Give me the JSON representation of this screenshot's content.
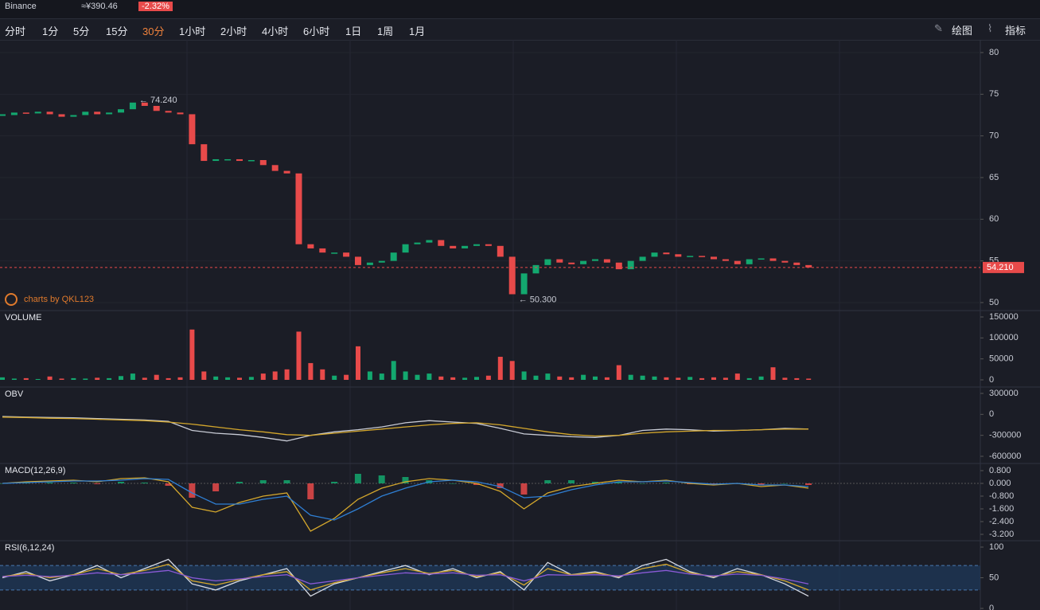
{
  "header": {
    "exchange": "Binance",
    "price": "≈¥390.46",
    "change": "-2.32%"
  },
  "toolbar": {
    "intervals": [
      "分时",
      "1分",
      "5分",
      "15分",
      "30分",
      "1小时",
      "2小时",
      "4小时",
      "6小时",
      "1日",
      "1周",
      "1月"
    ],
    "draw": "绘图",
    "indicators": "指标"
  },
  "chart_data": [
    {
      "type": "candlestick",
      "watermark": "charts by QKL123",
      "up_color": "#13a86f",
      "down_color": "#e84a4a",
      "values": [
        72.5,
        72.8,
        72.7,
        72.9,
        72.6,
        72.3,
        72.5,
        72.9,
        72.6,
        72.8,
        73.2,
        74.0,
        73.6,
        73.0,
        72.8,
        72.6,
        69.0,
        67.0,
        67.2,
        67.2,
        67.0,
        67.1,
        66.5,
        65.8,
        65.5,
        57.0,
        56.5,
        56.0,
        56.0,
        55.5,
        54.5,
        54.8,
        55.0,
        56.0,
        57.0,
        57.2,
        57.5,
        56.8,
        56.5,
        56.8,
        57.0,
        56.8,
        55.5,
        51.0,
        53.5,
        54.5,
        55.2,
        54.8,
        54.6,
        55.0,
        55.2,
        54.8,
        54.0,
        55.0,
        55.5,
        56.0,
        55.8,
        55.5,
        55.6,
        55.5,
        55.2,
        55.0,
        54.6,
        55.2,
        55.3,
        55.0,
        54.8,
        54.5,
        54.21
      ],
      "high": {
        "value": 74.24,
        "label": "← 74.240"
      },
      "low": {
        "value": 50.3,
        "label": "← 50.300"
      },
      "last_price": {
        "value": 54.21,
        "label": "54.210"
      },
      "ylim": [
        49.04,
        81.53
      ],
      "yticks": [
        50,
        55,
        60,
        65,
        70,
        75,
        80
      ]
    },
    {
      "type": "bar",
      "title": "VOLUME",
      "up_color": "#13a86f",
      "down_color": "#e84a4a",
      "values": [
        6000,
        3000,
        4000,
        2000,
        8000,
        3000,
        4000,
        3000,
        5000,
        4000,
        9000,
        15000,
        5000,
        12000,
        4000,
        6000,
        120000,
        20000,
        8000,
        6000,
        5000,
        7000,
        15000,
        20000,
        25000,
        115000,
        40000,
        25000,
        10000,
        12000,
        80000,
        20000,
        15000,
        45000,
        20000,
        12000,
        15000,
        8000,
        6000,
        5000,
        7000,
        10000,
        55000,
        45000,
        20000,
        10000,
        15000,
        8000,
        6000,
        12000,
        8000,
        6000,
        35000,
        12000,
        10000,
        8000,
        6000,
        5000,
        7000,
        4000,
        6000,
        5000,
        15000,
        4000,
        8000,
        30000,
        5000,
        4000,
        3000
      ],
      "ylim": [
        -17090,
        165190
      ],
      "yticks": [
        0,
        50000,
        100000,
        150000
      ]
    },
    {
      "type": "line",
      "title": "OBV",
      "series": [
        {
          "color": "#c9ccd6",
          "values": [
            -30000,
            -40000,
            -45000,
            -50000,
            -60000,
            -70000,
            -80000,
            -100000,
            -230000,
            -270000,
            -290000,
            -330000,
            -380000,
            -300000,
            -250000,
            -220000,
            -180000,
            -120000,
            -90000,
            -110000,
            -130000,
            -200000,
            -280000,
            -300000,
            -320000,
            -330000,
            -300000,
            -230000,
            -210000,
            -220000,
            -240000,
            -230000,
            -220000,
            -200000,
            -210000
          ]
        },
        {
          "color": "#d4a72c",
          "values": [
            -40000,
            -45000,
            -55000,
            -60000,
            -70000,
            -80000,
            -90000,
            -110000,
            -140000,
            -180000,
            -220000,
            -250000,
            -290000,
            -300000,
            -270000,
            -240000,
            -210000,
            -180000,
            -150000,
            -130000,
            -120000,
            -150000,
            -200000,
            -250000,
            -290000,
            -310000,
            -300000,
            -270000,
            -250000,
            -240000,
            -230000,
            -230000,
            -220000,
            -210000,
            -210000
          ]
        }
      ],
      "ylim": [
        -702500,
        391100
      ],
      "yticks": [
        -600000,
        -300000,
        0,
        300000
      ]
    },
    {
      "type": "line",
      "title": "MACD(12,26,9)",
      "histogram": {
        "up_color": "#13a86f",
        "down_color": "#e84a4a",
        "values": [
          0,
          0.05,
          0.05,
          0.05,
          -0.05,
          0.1,
          0.05,
          -0.15,
          -0.9,
          -0.5,
          0.1,
          0.2,
          0.2,
          -1.0,
          0.1,
          0.6,
          0.5,
          0.4,
          0.2,
          0,
          -0.1,
          -0.3,
          -0.7,
          0.2,
          0.2,
          0.1,
          0.1,
          0,
          0.05,
          -0.05,
          -0.05,
          0,
          -0.1,
          0,
          -0.1
        ]
      },
      "series": [
        {
          "color": "#d4a72c",
          "values": [
            0,
            0.1,
            0.15,
            0.2,
            0.1,
            0.3,
            0.35,
            0.1,
            -1.5,
            -1.8,
            -1.2,
            -0.8,
            -0.6,
            -3.0,
            -2.2,
            -1.0,
            -0.3,
            0.1,
            0.3,
            0.2,
            0.0,
            -0.5,
            -1.6,
            -0.6,
            -0.2,
            0.0,
            0.2,
            0.1,
            0.2,
            0.0,
            -0.1,
            0.0,
            -0.2,
            -0.1,
            -0.3
          ]
        },
        {
          "color": "#2f7fd4",
          "values": [
            0,
            0.05,
            0.1,
            0.15,
            0.15,
            0.2,
            0.3,
            0.25,
            -0.6,
            -1.3,
            -1.3,
            -1.0,
            -0.8,
            -2.0,
            -2.3,
            -1.6,
            -0.8,
            -0.3,
            0.1,
            0.2,
            0.1,
            -0.2,
            -0.9,
            -0.8,
            -0.4,
            -0.1,
            0.1,
            0.1,
            0.15,
            0.05,
            -0.05,
            0.0,
            -0.1,
            -0.1,
            -0.2
          ]
        }
      ],
      "ylim": [
        -3.6,
        1.25
      ],
      "yticks": [
        {
          "value": -3.2,
          "label": "-3.200"
        },
        {
          "value": -2.4,
          "label": "-2.400"
        },
        {
          "value": -1.6,
          "label": "-1.600"
        },
        {
          "value": -0.8,
          "label": "-0.800"
        },
        {
          "value": 0,
          "label": "0.000"
        },
        {
          "value": 0.8,
          "label": "0.800"
        }
      ]
    },
    {
      "type": "line",
      "title": "RSI(6,12,24)",
      "band": [
        30,
        70
      ],
      "band_color": "#1e3a5c",
      "series": [
        {
          "color": "#d8dbe3",
          "values": [
            50,
            60,
            45,
            55,
            70,
            50,
            65,
            80,
            40,
            30,
            45,
            55,
            65,
            20,
            40,
            50,
            60,
            70,
            55,
            65,
            50,
            60,
            30,
            75,
            55,
            60,
            50,
            70,
            80,
            60,
            50,
            65,
            55,
            40,
            20
          ]
        },
        {
          "color": "#d4a72c",
          "values": [
            52,
            57,
            50,
            55,
            65,
            55,
            62,
            72,
            45,
            38,
            47,
            55,
            60,
            30,
            42,
            50,
            58,
            65,
            57,
            62,
            52,
            58,
            38,
            65,
            55,
            58,
            52,
            65,
            72,
            58,
            52,
            60,
            55,
            45,
            30
          ]
        },
        {
          "color": "#8a5ad6",
          "values": [
            52,
            54,
            52,
            54,
            58,
            55,
            58,
            62,
            50,
            45,
            48,
            52,
            55,
            40,
            45,
            50,
            54,
            58,
            56,
            58,
            54,
            55,
            45,
            55,
            54,
            55,
            53,
            58,
            62,
            56,
            53,
            56,
            54,
            48,
            40
          ]
        }
      ],
      "ylim": [
        -2.6,
        110.4
      ],
      "yticks": [
        0,
        50,
        100
      ]
    }
  ]
}
